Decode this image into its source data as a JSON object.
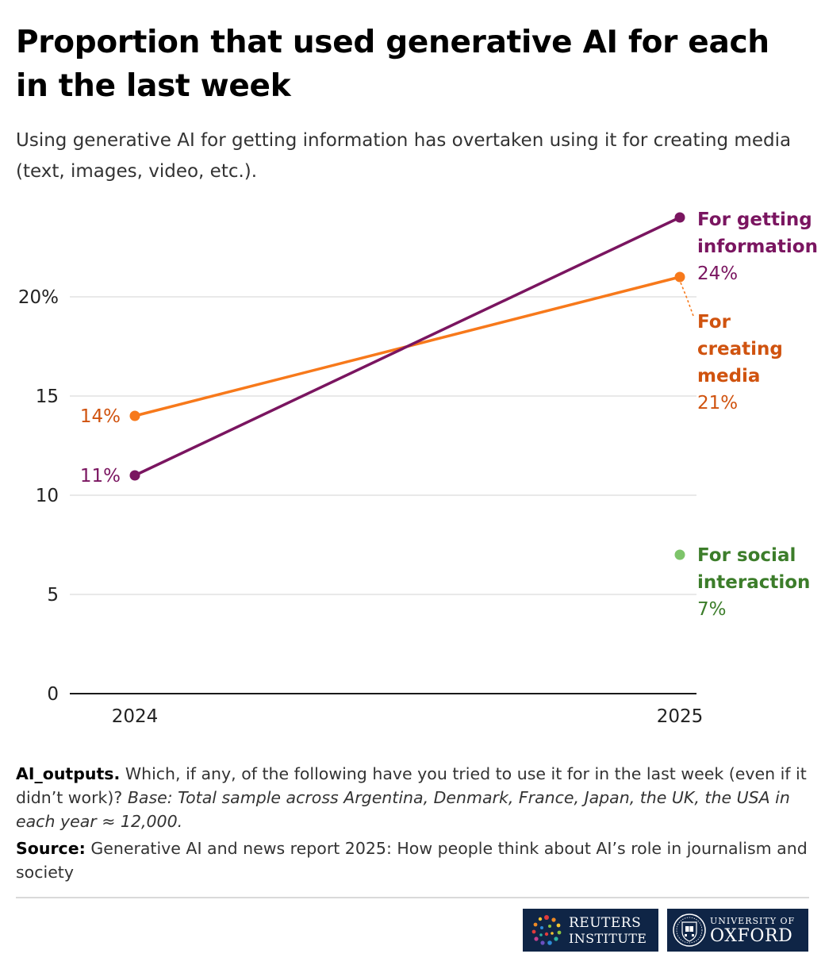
{
  "header": {
    "title": "Proportion that used generative AI for each in the last week",
    "subtitle": "Using generative AI for getting information has overtaken using it for creating media (text, images, video, etc.)."
  },
  "chart_data": {
    "type": "line",
    "x": [
      "2024",
      "2025"
    ],
    "ylim": [
      0,
      25
    ],
    "yticks": [
      "0",
      "5",
      "10",
      "15",
      "20%"
    ],
    "grid": true,
    "series": [
      {
        "name_lines": [
          "For getting",
          "information"
        ],
        "values": [
          11,
          24
        ],
        "value_labels": [
          "11%",
          "24%"
        ],
        "line_color": "#7a1560",
        "label_color": "#7a1560"
      },
      {
        "name_lines": [
          "For",
          "creating",
          "media"
        ],
        "values": [
          14,
          21
        ],
        "value_labels": [
          "14%",
          "21%"
        ],
        "line_color": "#f7791b",
        "label_color": "#d0530f"
      },
      {
        "name_lines": [
          "For social",
          "interaction"
        ],
        "values": [
          null,
          7
        ],
        "value_labels": [
          "",
          "7%"
        ],
        "line_color": "#7dc46a",
        "label_color": "#3c7d2a"
      }
    ]
  },
  "notes": {
    "question_label": "AI_outputs.",
    "question_text": "Which, if any, of the following have you tried to use it for in the last week (even if it didn’t work)?",
    "base_text": "Base: Total sample across Argentina, Denmark, France, Japan, the UK, the USA in each year ≈ 12,000.",
    "source_label": "Source:",
    "source_text": "Generative AI and news report 2025: How people think about AI’s role in journalism and society"
  },
  "logos": {
    "reuters_line1": "REUTERS",
    "reuters_line2": "INSTITUTE",
    "oxford_line1": "UNIVERSITY OF",
    "oxford_line2": "OXFORD"
  }
}
